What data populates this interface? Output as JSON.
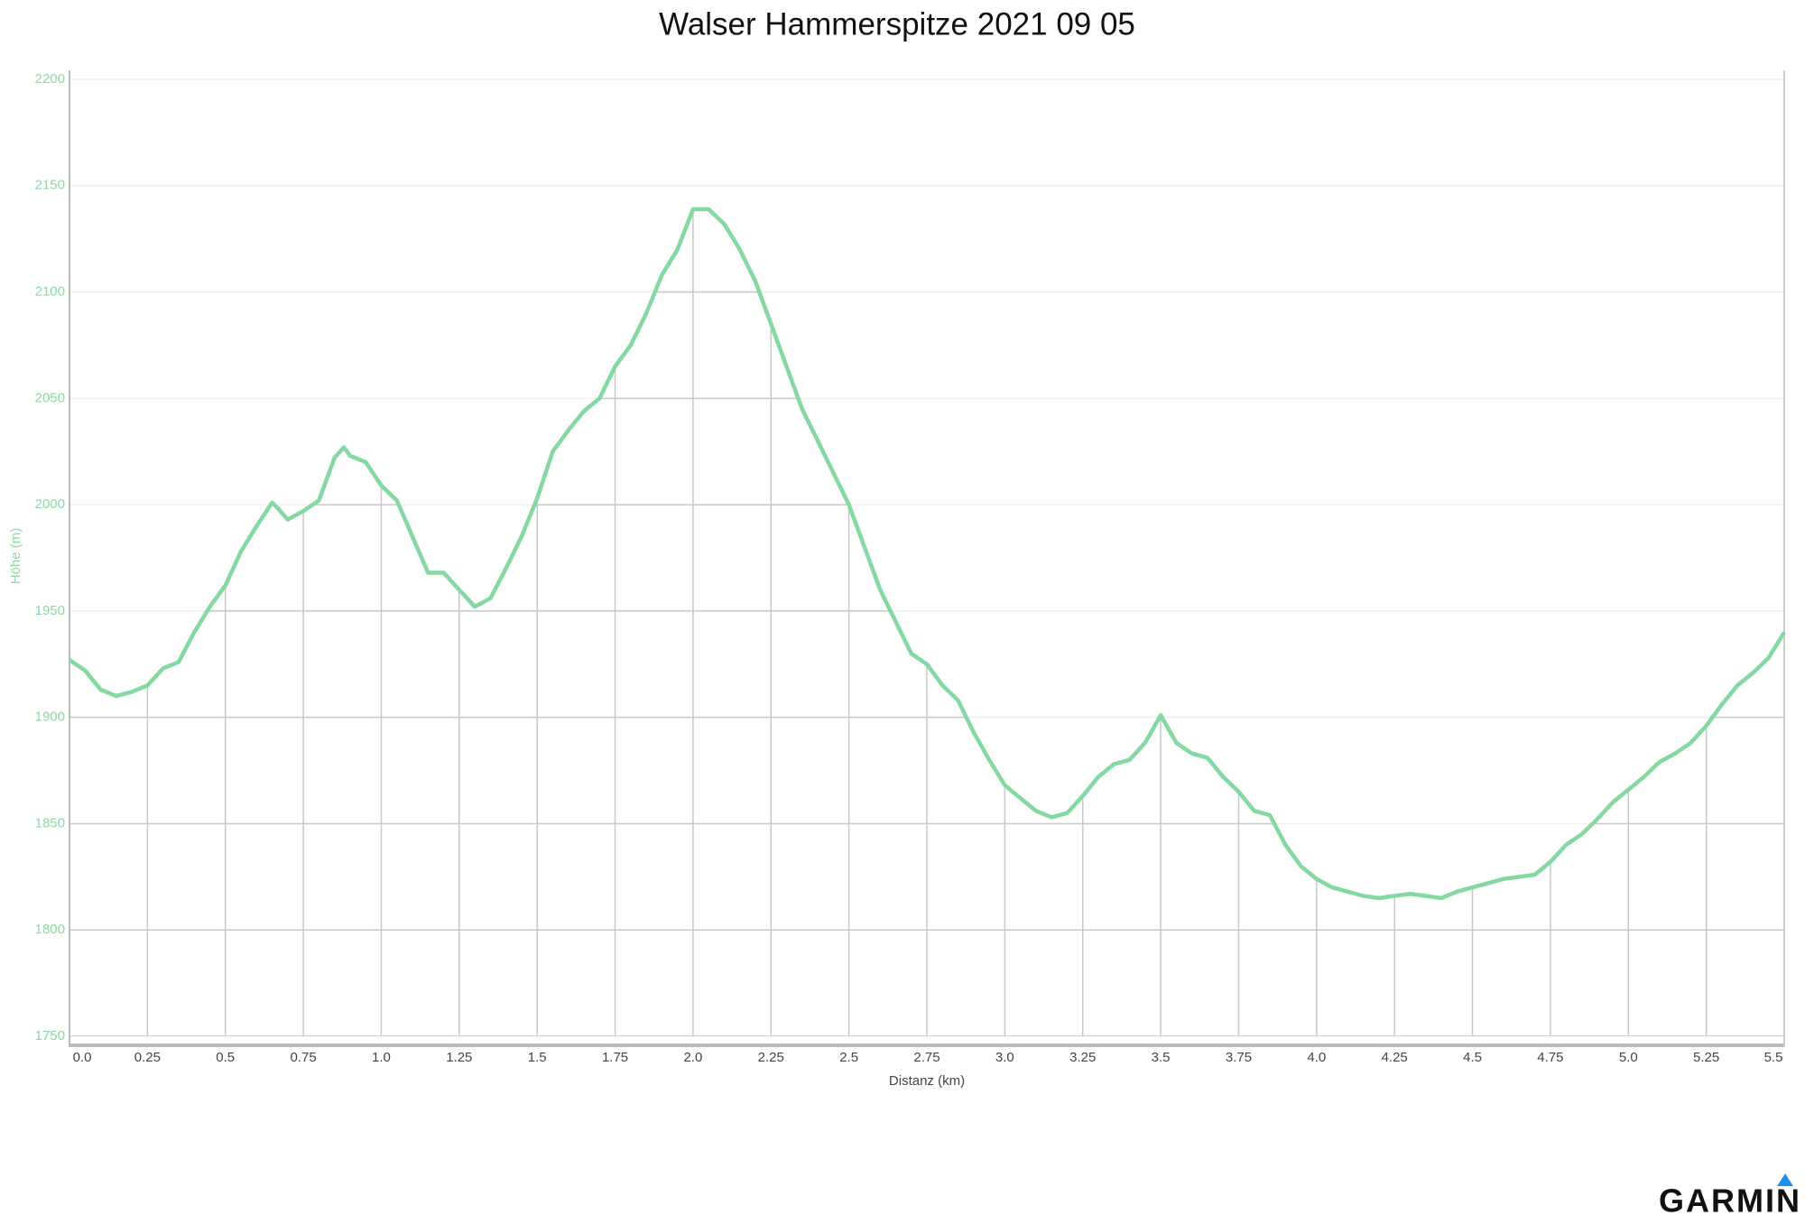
{
  "chart_data": {
    "type": "line",
    "title": "Walser Hammerspitze 2021 09 05",
    "x_label": "Distanz (km)",
    "y_label": "Höhe (m)",
    "logo": "GARMIN",
    "xlim": [
      0,
      5.5
    ],
    "ylim": [
      1750,
      2200
    ],
    "xticks": [
      {
        "value": 0,
        "label": "0.0"
      },
      0.25,
      0.5,
      0.75,
      {
        "value": 1,
        "label": "1.0"
      },
      1.25,
      1.5,
      1.75,
      {
        "value": 2,
        "label": "2.0"
      },
      2.25,
      2.5,
      2.75,
      {
        "value": 3,
        "label": "3.0"
      },
      3.25,
      3.5,
      3.75,
      {
        "value": 4,
        "label": "4.0"
      },
      4.25,
      4.5,
      4.75,
      {
        "value": 5,
        "label": "5.0"
      },
      5.25,
      5.5
    ],
    "yticks": [
      1750,
      1800,
      1850,
      1900,
      1950,
      2000,
      2050,
      2100,
      2150,
      2200
    ],
    "grid": true,
    "color": "#84d8a2",
    "x": [
      0,
      0.05,
      0.1,
      0.15,
      0.2,
      0.25,
      0.3,
      0.35,
      0.4,
      0.45,
      0.5,
      0.55,
      0.6,
      0.65,
      0.67,
      0.7,
      0.75,
      0.8,
      0.85,
      0.88,
      0.9,
      0.95,
      1.0,
      1.05,
      1.1,
      1.15,
      1.2,
      1.25,
      1.3,
      1.35,
      1.4,
      1.45,
      1.5,
      1.55,
      1.6,
      1.65,
      1.7,
      1.75,
      1.8,
      1.85,
      1.9,
      1.95,
      2.0,
      2.05,
      2.1,
      2.15,
      2.2,
      2.25,
      2.3,
      2.35,
      2.4,
      2.45,
      2.5,
      2.55,
      2.6,
      2.65,
      2.7,
      2.75,
      2.8,
      2.85,
      2.9,
      2.95,
      3.0,
      3.05,
      3.1,
      3.15,
      3.2,
      3.25,
      3.3,
      3.35,
      3.4,
      3.45,
      3.5,
      3.55,
      3.6,
      3.65,
      3.7,
      3.75,
      3.8,
      3.85,
      3.9,
      3.95,
      4.0,
      4.05,
      4.1,
      4.15,
      4.2,
      4.25,
      4.3,
      4.35,
      4.4,
      4.45,
      4.5,
      4.55,
      4.6,
      4.65,
      4.7,
      4.75,
      4.8,
      4.85,
      4.9,
      4.95,
      5.0,
      5.05,
      5.1,
      5.15,
      5.2,
      5.25,
      5.3,
      5.35,
      5.4,
      5.45,
      5.5
    ],
    "values": [
      1927,
      1922,
      1913,
      1910,
      1912,
      1915,
      1923,
      1926,
      1940,
      1952,
      1962,
      1978,
      1990,
      2001,
      1998,
      1993,
      1997,
      2002,
      2022,
      2027,
      2023,
      2020,
      2009,
      2002,
      1985,
      1968,
      1968,
      1960,
      1952,
      1956,
      1970,
      1985,
      2003,
      2025,
      2035,
      2044,
      2050,
      2065,
      2075,
      2090,
      2108,
      2120,
      2139,
      2139,
      2132,
      2120,
      2105,
      2085,
      2065,
      2045,
      2030,
      2015,
      2000,
      1980,
      1960,
      1945,
      1930,
      1925,
      1915,
      1908,
      1893,
      1880,
      1868,
      1862,
      1856,
      1853,
      1855,
      1863,
      1872,
      1878,
      1880,
      1888,
      1901,
      1888,
      1883,
      1881,
      1872,
      1865,
      1856,
      1854,
      1840,
      1830,
      1824,
      1820,
      1818,
      1816,
      1815,
      1816,
      1817,
      1816,
      1815,
      1818,
      1820,
      1822,
      1824,
      1825,
      1826,
      1832,
      1840,
      1845,
      1852,
      1860,
      1866,
      1872,
      1879,
      1883,
      1888,
      1896,
      1906,
      1915,
      1921,
      1928,
      1940
    ]
  }
}
